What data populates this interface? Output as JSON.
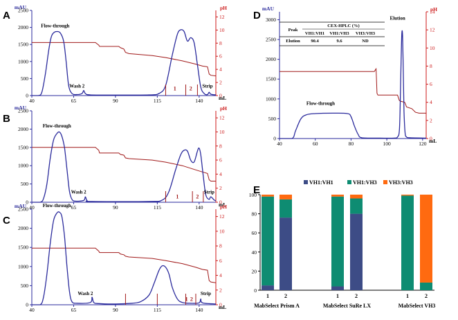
{
  "colors": {
    "uv": "#2a2a9c",
    "ph": "#a01818",
    "axis_left": "#2a2a9c",
    "axis_right": "#cc1a1a",
    "vh1vh1": "#3d4c86",
    "vh1vh3": "#0e8c72",
    "vh3vh3": "#ff6a10"
  },
  "chromatograms": [
    {
      "panel": "A",
      "y_unit": "mAU",
      "y2_unit": "pH",
      "x_unit": "mL",
      "x_ticks": [
        "40",
        "65",
        "90",
        "115",
        "140"
      ],
      "y_ticks": [
        "0",
        "500",
        "1000",
        "1500",
        "2000",
        "2500"
      ],
      "y2_ticks": [
        "0",
        "2",
        "4",
        "6",
        "8",
        "10",
        "12"
      ],
      "x_range": [
        40,
        150
      ],
      "y_range": [
        0,
        2500
      ],
      "y2_range": [
        0,
        13
      ],
      "uv_curve": [
        [
          40,
          0
        ],
        [
          44,
          0
        ],
        [
          46,
          100
        ],
        [
          48,
          600
        ],
        [
          50,
          1300
        ],
        [
          51.5,
          1700
        ],
        [
          53,
          1840
        ],
        [
          55,
          1880
        ],
        [
          57,
          1840
        ],
        [
          59,
          1600
        ],
        [
          60.5,
          1000
        ],
        [
          62,
          300
        ],
        [
          64,
          60
        ],
        [
          67,
          30
        ],
        [
          70,
          60
        ],
        [
          71,
          150
        ],
        [
          72,
          60
        ],
        [
          75,
          20
        ],
        [
          90,
          15
        ],
        [
          110,
          20
        ],
        [
          116,
          60
        ],
        [
          120,
          300
        ],
        [
          124,
          1200
        ],
        [
          127,
          1800
        ],
        [
          129,
          1930
        ],
        [
          131,
          1880
        ],
        [
          133,
          1600
        ],
        [
          135,
          1700
        ],
        [
          137,
          1550
        ],
        [
          139,
          900
        ],
        [
          141,
          250
        ],
        [
          143,
          60
        ],
        [
          145,
          30
        ],
        [
          146,
          100
        ],
        [
          147,
          40
        ],
        [
          150,
          20
        ]
      ],
      "ph_curve": [
        [
          40,
          8.1
        ],
        [
          78,
          8.1
        ],
        [
          80,
          7.7
        ],
        [
          80.5,
          7.5
        ],
        [
          92,
          7.5
        ],
        [
          93,
          7.3
        ],
        [
          95,
          7.1
        ],
        [
          96,
          6.6
        ],
        [
          98,
          6.4
        ],
        [
          112,
          6.1
        ],
        [
          120,
          5.8
        ],
        [
          130,
          5.3
        ],
        [
          138,
          4.8
        ],
        [
          142,
          4.5
        ],
        [
          145,
          4.4
        ],
        [
          146,
          3.3
        ],
        [
          147,
          3.1
        ],
        [
          150,
          3.0
        ]
      ],
      "markers": [
        120,
        132,
        139
      ],
      "annotations": [
        {
          "text": "Flow-through",
          "x": 54,
          "y": 2000
        },
        {
          "text": "Wash 2",
          "x": 67,
          "y": 230
        },
        {
          "text": "Strip",
          "x": 145,
          "y": 230
        }
      ],
      "fractions": [
        {
          "text": "1",
          "x": 125.5,
          "y": 150
        },
        {
          "text": "2",
          "x": 135,
          "y": 150
        }
      ]
    },
    {
      "panel": "B",
      "y_unit": "mAU",
      "y2_unit": "pH",
      "x_unit": "mL",
      "x_ticks": [
        "40",
        "65",
        "90",
        "115",
        "140"
      ],
      "y_ticks": [
        "0",
        "500",
        "1000",
        "1500",
        "2000",
        "2500"
      ],
      "y2_ticks": [
        "0",
        "2",
        "4",
        "6",
        "8",
        "10",
        "12"
      ],
      "x_range": [
        40,
        150
      ],
      "y_range": [
        0,
        2500
      ],
      "y2_range": [
        0,
        13
      ],
      "uv_curve": [
        [
          40,
          0
        ],
        [
          45,
          0
        ],
        [
          47,
          100
        ],
        [
          49,
          500
        ],
        [
          51,
          1200
        ],
        [
          53,
          1700
        ],
        [
          55,
          1880
        ],
        [
          56.5,
          1920
        ],
        [
          58,
          1800
        ],
        [
          59.5,
          1500
        ],
        [
          61,
          900
        ],
        [
          62.5,
          300
        ],
        [
          64,
          80
        ],
        [
          66,
          30
        ],
        [
          71,
          50
        ],
        [
          72,
          150
        ],
        [
          73,
          50
        ],
        [
          76,
          20
        ],
        [
          110,
          20
        ],
        [
          118,
          60
        ],
        [
          122,
          300
        ],
        [
          126,
          900
        ],
        [
          129,
          1300
        ],
        [
          131,
          1420
        ],
        [
          133,
          1400
        ],
        [
          135,
          1150
        ],
        [
          137,
          1100
        ],
        [
          139,
          1400
        ],
        [
          140,
          1480
        ],
        [
          141,
          1300
        ],
        [
          142.5,
          700
        ],
        [
          144,
          200
        ],
        [
          146,
          80
        ],
        [
          147,
          150
        ],
        [
          149,
          60
        ],
        [
          150,
          40
        ]
      ],
      "ph_curve": [
        [
          40,
          7.8
        ],
        [
          78,
          7.8
        ],
        [
          80,
          7.4
        ],
        [
          80.5,
          7.0
        ],
        [
          92,
          7.0
        ],
        [
          93,
          6.8
        ],
        [
          95,
          6.7
        ],
        [
          96,
          6.3
        ],
        [
          98,
          6.2
        ],
        [
          112,
          6.0
        ],
        [
          120,
          5.7
        ],
        [
          130,
          5.2
        ],
        [
          138,
          4.6
        ],
        [
          142,
          4.3
        ],
        [
          145,
          4.1
        ],
        [
          146,
          3.2
        ],
        [
          147,
          3.0
        ],
        [
          150,
          3.0
        ]
      ],
      "markers": [
        120,
        136,
        142.5
      ],
      "annotations": [
        {
          "text": "Flow-through",
          "x": 55,
          "y": 2050
        },
        {
          "text": "Wash 2",
          "x": 68,
          "y": 240
        },
        {
          "text": "Strip",
          "x": 146,
          "y": 240
        }
      ],
      "fractions": [
        {
          "text": "1",
          "x": 127,
          "y": 100
        },
        {
          "text": "2",
          "x": 139,
          "y": 100
        }
      ]
    },
    {
      "panel": "C",
      "y_unit": "mAU",
      "y2_unit": "pH",
      "x_unit": "mL",
      "x_ticks": [
        "40",
        "65",
        "90",
        "115",
        "140"
      ],
      "y_ticks": [
        "0",
        "500",
        "1000",
        "1500",
        "2000",
        "2500"
      ],
      "y2_ticks": [
        "0",
        "2",
        "4",
        "6",
        "8",
        "10",
        "12"
      ],
      "x_range": [
        40,
        150
      ],
      "y_range": [
        0,
        2500
      ],
      "y2_range": [
        0,
        13
      ],
      "uv_curve": [
        [
          40,
          0
        ],
        [
          45,
          0
        ],
        [
          47,
          200
        ],
        [
          49,
          800
        ],
        [
          51,
          1600
        ],
        [
          53,
          2200
        ],
        [
          55,
          2400
        ],
        [
          56.5,
          2420
        ],
        [
          58,
          2300
        ],
        [
          59.5,
          1800
        ],
        [
          61,
          1000
        ],
        [
          62.5,
          350
        ],
        [
          64,
          80
        ],
        [
          67,
          40
        ],
        [
          75,
          60
        ],
        [
          76,
          200
        ],
        [
          77,
          60
        ],
        [
          80,
          30
        ],
        [
          90,
          20
        ],
        [
          100,
          40
        ],
        [
          105,
          80
        ],
        [
          110,
          250
        ],
        [
          113,
          550
        ],
        [
          116,
          900
        ],
        [
          118,
          1020
        ],
        [
          120,
          980
        ],
        [
          122,
          800
        ],
        [
          124,
          450
        ],
        [
          127,
          150
        ],
        [
          130,
          60
        ],
        [
          135,
          40
        ],
        [
          140,
          50
        ],
        [
          141,
          150
        ],
        [
          142,
          50
        ],
        [
          150,
          20
        ]
      ],
      "ph_curve": [
        [
          40,
          7.7
        ],
        [
          78,
          7.7
        ],
        [
          80,
          7.3
        ],
        [
          80.5,
          7.1
        ],
        [
          92,
          7.1
        ],
        [
          93,
          6.9
        ],
        [
          95,
          6.8
        ],
        [
          96,
          6.6
        ],
        [
          98,
          6.5
        ],
        [
          112,
          6.3
        ],
        [
          120,
          6.0
        ],
        [
          130,
          5.6
        ],
        [
          138,
          5.1
        ],
        [
          142,
          4.8
        ],
        [
          145,
          4.7
        ],
        [
          146,
          3.3
        ],
        [
          147,
          3.1
        ],
        [
          150,
          3.0
        ]
      ],
      "markers": [
        96,
        115,
        132,
        138
      ],
      "annotations": [
        {
          "text": "Flow-through",
          "x": 55,
          "y": 2550
        },
        {
          "text": "Wash 2",
          "x": 72,
          "y": 250
        },
        {
          "text": "Strip",
          "x": 144,
          "y": 250
        }
      ],
      "fractions": [
        {
          "text": "1",
          "x": 132.5,
          "y": 100
        },
        {
          "text": "2",
          "x": 135.5,
          "y": 100
        }
      ]
    },
    {
      "panel": "D",
      "y_unit": "mAU",
      "y2_unit": "pH",
      "x_unit": "mL",
      "x_ticks": [
        "40",
        "60",
        "80",
        "100",
        "120"
      ],
      "y_ticks": [
        "0",
        "500",
        "1000",
        "1500",
        "2000",
        "2500",
        "3000"
      ],
      "y2_ticks": [
        "0",
        "2",
        "4",
        "6",
        "8",
        "10",
        "12",
        "14"
      ],
      "x_range": [
        40,
        122
      ],
      "y_range": [
        0,
        3200
      ],
      "y2_range": [
        0,
        14
      ],
      "uv_curve": [
        [
          40,
          0
        ],
        [
          47,
          0
        ],
        [
          49,
          200
        ],
        [
          52,
          500
        ],
        [
          55,
          600
        ],
        [
          60,
          630
        ],
        [
          70,
          640
        ],
        [
          78,
          630
        ],
        [
          80,
          550
        ],
        [
          82,
          300
        ],
        [
          84,
          100
        ],
        [
          86,
          20
        ],
        [
          95,
          10
        ],
        [
          104,
          10
        ],
        [
          106,
          40
        ],
        [
          107,
          200
        ],
        [
          107.5,
          900
        ],
        [
          108,
          2000
        ],
        [
          108.4,
          2650
        ],
        [
          108.8,
          2600
        ],
        [
          109.2,
          1700
        ],
        [
          109.6,
          700
        ],
        [
          110.2,
          150
        ],
        [
          111,
          40
        ],
        [
          113,
          20
        ],
        [
          122,
          10
        ]
      ],
      "ph_curve": [
        [
          40,
          7.4
        ],
        [
          93,
          7.4
        ],
        [
          94,
          7.7
        ],
        [
          94.5,
          5.0
        ],
        [
          95,
          4.8
        ],
        [
          105,
          4.8
        ],
        [
          106,
          4.8
        ],
        [
          107,
          4.2
        ],
        [
          108,
          4.1
        ],
        [
          110,
          4.0
        ],
        [
          111,
          3.5
        ],
        [
          114,
          3.3
        ],
        [
          116,
          2.9
        ],
        [
          118,
          2.8
        ],
        [
          122,
          2.8
        ]
      ],
      "markers": [],
      "annotations": [
        {
          "text": "Flow-through",
          "x": 63,
          "y": 850
        },
        {
          "text": "Elution",
          "x": 106,
          "y": 3000
        }
      ],
      "fractions": []
    }
  ],
  "table_d": {
    "span_header": "CEX-HPLC (%)",
    "row_header": "Peak",
    "columns": [
      "VH1:VH1",
      "VH1:VH3",
      "VH3:VH3"
    ],
    "rows": [
      {
        "label": "Elution",
        "values": [
          "90.4",
          "9.6",
          "ND"
        ]
      }
    ]
  },
  "chart_data": [
    {
      "panel": "E",
      "type": "bar",
      "stacked": true,
      "categories": [
        "1",
        "2",
        "1",
        "2",
        "1",
        "2"
      ],
      "groups": [
        "MabSelect Prism A",
        "MabSelect SuRe LX",
        "MabSelect VH3"
      ],
      "group_of_category": [
        0,
        0,
        1,
        1,
        2,
        2
      ],
      "series": [
        {
          "name": "VH1:VH1",
          "values": [
            5,
            76,
            4,
            80,
            0,
            0
          ]
        },
        {
          "name": "VH1:VH3",
          "values": [
            93,
            19,
            94,
            16,
            99,
            8
          ]
        },
        {
          "name": "VH3:VH3",
          "values": [
            2,
            5,
            2,
            4,
            1,
            92
          ]
        }
      ],
      "y_ticks": [
        "0",
        "20",
        "40",
        "60",
        "80",
        "100"
      ],
      "ylim": [
        0,
        100
      ],
      "legend_position": "top"
    }
  ]
}
